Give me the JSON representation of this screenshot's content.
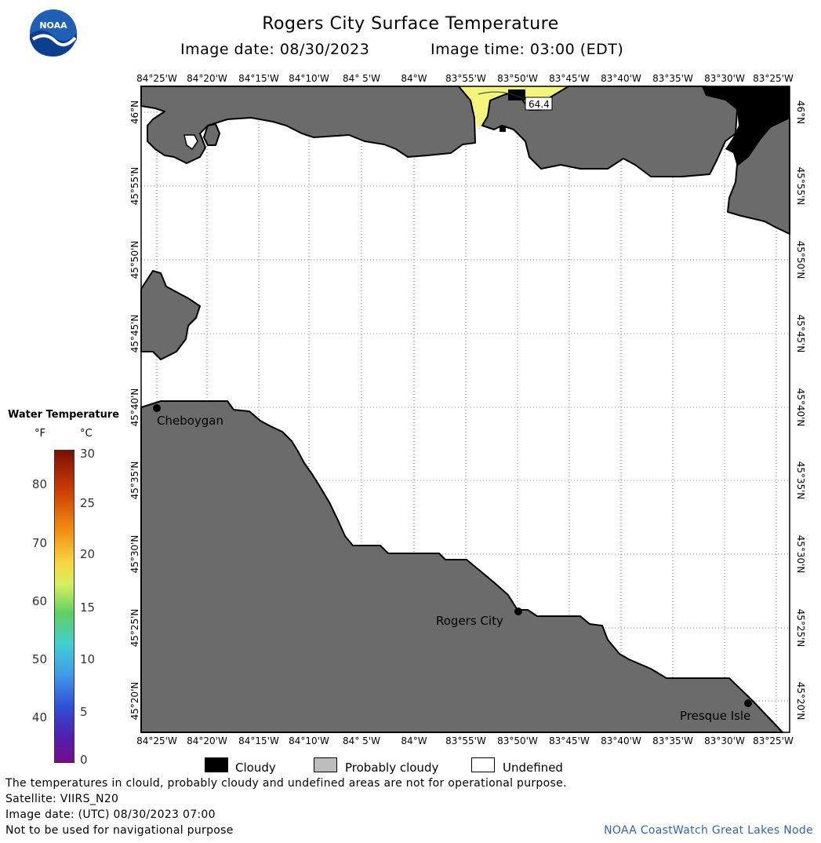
{
  "title": "Rogers City Surface Temperature",
  "image_date_label": "Image date: 08/30/2023",
  "image_time_label": "Image time: 03:00 (EDT)",
  "logo_text": "NOAA",
  "longitude_labels": [
    "84°25'W",
    "84°20'W",
    "84°15'W",
    "84°10'W",
    "84° 5'W",
    "84°W",
    "83°55'W",
    "83°50'W",
    "83°45'W",
    "83°40'W",
    "83°35'W",
    "83°30'W",
    "83°25'W"
  ],
  "latitude_labels": [
    "46°N",
    "45°55'N",
    "45°50'N",
    "45°45'N",
    "45°40'N",
    "45°35'N",
    "45°30'N",
    "45°25'N",
    "45°20'N"
  ],
  "cities": [
    {
      "name": "Cheboygan",
      "lon": "84°25'W",
      "lat": "45°40'N"
    },
    {
      "name": "Rogers City",
      "lon": "83°50'W",
      "lat": "45°25'N"
    },
    {
      "name": "Presque Isle",
      "lon": "83°27'W",
      "lat": "45°20'N"
    }
  ],
  "temperature_marker": {
    "value": "64.4",
    "unit": "°F"
  },
  "legend": {
    "title": "Water Temperature",
    "f_header": "°F",
    "c_header": "°C",
    "f_ticks": [
      "80",
      "70",
      "60",
      "50",
      "40"
    ],
    "c_ticks": [
      "30",
      "25",
      "20",
      "15",
      "10",
      "5",
      "0"
    ]
  },
  "key": {
    "cloudy": "Cloudy",
    "probably_cloudy": "Probably cloudy",
    "undefined": "Undefined"
  },
  "notes": {
    "disclaimer": "The temperatures in clould, probably cloudy and undefined areas are not for operational purpose.",
    "satellite": "Satellite: VIIRS_N20",
    "utc_date": "Image date: (UTC) 08/30/2023  07:00",
    "navigation": "Not to be used for navigational purpose"
  },
  "credit": "NOAA CoastWatch Great Lakes Node",
  "colors": {
    "land": "#6b6b6b",
    "cloudy": "#000000",
    "probably_cloudy": "#bdbdbd",
    "undefined": "#ffffff",
    "warm_water": "#f2f57a",
    "credit": "#2a64c8"
  }
}
